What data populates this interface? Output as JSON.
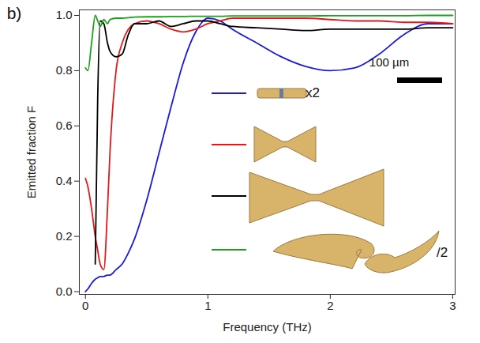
{
  "chart_data": {
    "type": "line",
    "panel": "b)",
    "x_label": "Frequency (THz)",
    "y_label": "Emitted fraction F",
    "xlim": [
      -0.05,
      3.02
    ],
    "xticks": [
      0,
      1,
      2,
      3
    ],
    "ylim": [
      -0.01,
      1.02
    ],
    "yticks": [
      {
        "value": 0,
        "label": "0.0"
      },
      {
        "value": 0.2,
        "label": "0.2"
      },
      {
        "value": 0.4,
        "label": "0.4"
      },
      {
        "value": 0.6,
        "label": "0.6"
      },
      {
        "value": 0.8,
        "label": "0.8"
      },
      {
        "value": 1,
        "label": "1.0"
      }
    ],
    "grid": false,
    "annotations": [
      "x2",
      "100 µm",
      "/2"
    ],
    "x": [
      0,
      0.02,
      0.05,
      0.08,
      0.1,
      0.12,
      0.15,
      0.18,
      0.2,
      0.25,
      0.3,
      0.35,
      0.4,
      0.5,
      0.6,
      0.7,
      0.8,
      0.9,
      1.0,
      1.1,
      1.2,
      1.4,
      1.6,
      1.8,
      2.0,
      2.2,
      2.4,
      2.6,
      2.8,
      3.0
    ],
    "series": [
      {
        "color": "#1a1ad8",
        "values": [
          0,
          0.01,
          0.03,
          0.045,
          0.05,
          0.055,
          0.055,
          0.06,
          0.06,
          0.08,
          0.1,
          0.14,
          0.19,
          0.33,
          0.5,
          0.67,
          0.83,
          0.94,
          0.99,
          0.98,
          0.95,
          0.9,
          0.85,
          0.815,
          0.8,
          0.81,
          0.86,
          0.93,
          0.97,
          0.97
        ]
      },
      {
        "color": "#e01a1a",
        "values": [
          0.41,
          0.38,
          0.3,
          0.2,
          0.15,
          0.1,
          0.08,
          0.3,
          0.5,
          0.8,
          0.9,
          0.95,
          0.97,
          0.98,
          0.97,
          0.95,
          0.94,
          0.95,
          0.97,
          0.98,
          0.99,
          0.99,
          0.99,
          0.99,
          0.985,
          0.98,
          0.98,
          0.975,
          0.975,
          0.97
        ]
      },
      {
        "color": "#000000",
        "values": [
          null,
          null,
          null,
          0.1,
          0.7,
          0.98,
          0.97,
          0.9,
          0.87,
          0.85,
          0.86,
          0.93,
          0.97,
          0.97,
          0.98,
          0.96,
          0.97,
          0.98,
          0.98,
          0.97,
          0.96,
          0.955,
          0.95,
          0.945,
          0.95,
          0.95,
          0.95,
          0.95,
          0.955,
          0.955
        ]
      },
      {
        "color": "#1f9e1f",
        "values": [
          0.81,
          0.8,
          0.9,
          1.0,
          0.98,
          0.96,
          0.985,
          0.97,
          0.985,
          0.99,
          0.99,
          0.992,
          0.994,
          0.995,
          0.995,
          0.996,
          0.996,
          0.997,
          0.997,
          0.997,
          0.998,
          0.998,
          0.998,
          0.998,
          0.999,
          0.999,
          0.999,
          0.999,
          1.0,
          1.0
        ]
      }
    ]
  }
}
